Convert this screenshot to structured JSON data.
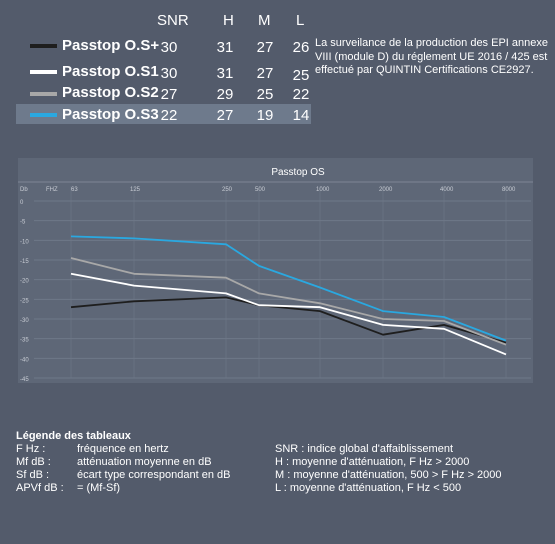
{
  "table": {
    "headers": [
      "SNR",
      "H",
      "M",
      "L"
    ],
    "rows": [
      {
        "name": "Passtop O.S+",
        "color": "#1e1e1e",
        "values": [
          "30",
          "31",
          "27",
          "26"
        ]
      },
      {
        "name": "Passtop O.S1",
        "color": "#ffffff",
        "values": [
          "30",
          "31",
          "27",
          "25"
        ]
      },
      {
        "name": "Passtop O.S2",
        "color": "#a8a8a8",
        "values": [
          "27",
          "29",
          "25",
          "22"
        ]
      },
      {
        "name": "Passtop O.S3",
        "color": "#2aa8e0",
        "values": [
          "22",
          "27",
          "19",
          "14"
        ]
      }
    ],
    "highlight_row_color": "#6e7a8c"
  },
  "note": "La surveilance de la production des EPI annexe VIII  (module D) du réglement UE 2016 / 425 est effectué par QUINTIN Certifications CE2927.",
  "chart_data": {
    "type": "line",
    "title": "Passtop OS",
    "ylabel": "Db",
    "xlabel": "FHZ",
    "categories": [
      "63",
      "125",
      "250",
      "500",
      "1000",
      "2000",
      "4000",
      "8000"
    ],
    "yticks": [
      "0",
      "-5",
      "-10",
      "-15",
      "-20",
      "-25",
      "-30",
      "-35",
      "-40",
      "-45"
    ],
    "ylim": [
      -45,
      0
    ],
    "grid": true,
    "series": [
      {
        "name": "Passtop O.S+",
        "color": "#1e1e1e",
        "values": [
          -27,
          -25.5,
          -24.5,
          -26.5,
          -28,
          -34,
          -31.5,
          -36
        ]
      },
      {
        "name": "Passtop O.S1",
        "color": "#ffffff",
        "values": [
          -18.5,
          -21.5,
          -23.5,
          -26.5,
          -27,
          -31.5,
          -32.5,
          -39
        ]
      },
      {
        "name": "Passtop O.S2",
        "color": "#a8a8a8",
        "values": [
          -14.5,
          -18.5,
          -19.5,
          -23.5,
          -26,
          -30,
          -30.5,
          -36.5
        ]
      },
      {
        "name": "Passtop O.S3",
        "color": "#2aa8e0",
        "values": [
          -9,
          -9.5,
          -11,
          -16.5,
          -22,
          -28,
          -29.5,
          -35.5
        ]
      }
    ]
  },
  "legend": {
    "title": "Légende des tableaux",
    "left": [
      {
        "term": "F Hz :",
        "desc": "fréquence en hertz"
      },
      {
        "term": "Mf dB :",
        "desc": "atténuation moyenne en dB"
      },
      {
        "term": "Sf dB :",
        "desc": "écart type correspondant en dB"
      },
      {
        "term": "APVf dB :",
        "desc": "= (Mf-Sf)"
      }
    ],
    "right": [
      {
        "term": "SNR :",
        "desc": " indice global d'affaiblissement"
      },
      {
        "term": "H :",
        "desc": "moyenne d'atténuation, F Hz > 2000"
      },
      {
        "term": "M :",
        "desc": "moyenne d'atténuation, 500 > F Hz > 2000"
      },
      {
        "term": "L :",
        "desc": "moyenne d'atténuation, F Hz < 500"
      }
    ]
  }
}
